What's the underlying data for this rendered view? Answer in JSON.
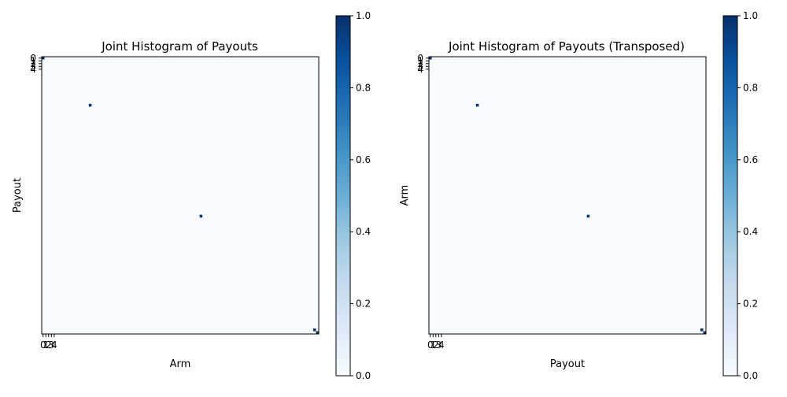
{
  "chart_data": [
    {
      "type": "heatmap",
      "title": "Joint Histogram of Payouts",
      "xlabel": "Arm",
      "ylabel": "Payout",
      "xticks": [
        "0",
        "1",
        "2",
        "3",
        "4"
      ],
      "yticks": [
        "0",
        "1",
        "2",
        "3",
        "4"
      ],
      "grid_size": 100,
      "cells": [
        {
          "x": 0,
          "y": 0,
          "value": 1
        },
        {
          "x": 17,
          "y": 17,
          "value": 1
        },
        {
          "x": 57,
          "y": 57,
          "value": 1
        },
        {
          "x": 98,
          "y": 98,
          "value": 1
        },
        {
          "x": 99,
          "y": 99,
          "value": 1
        }
      ],
      "colorbar": {
        "min": 0,
        "max": 1,
        "ticks": [
          "0.0",
          "0.2",
          "0.4",
          "0.6",
          "0.8",
          "1.0"
        ]
      },
      "colors": {
        "low": "#f7fbff",
        "high": "#08306b"
      }
    },
    {
      "type": "heatmap",
      "title": "Joint Histogram of Payouts (Transposed)",
      "xlabel": "Payout",
      "ylabel": "Arm",
      "xticks": [
        "0",
        "1",
        "2",
        "3",
        "4"
      ],
      "yticks": [
        "0",
        "1",
        "2",
        "3",
        "4"
      ],
      "grid_size": 100,
      "cells": [
        {
          "x": 0,
          "y": 0,
          "value": 1
        },
        {
          "x": 17,
          "y": 17,
          "value": 1
        },
        {
          "x": 57,
          "y": 57,
          "value": 1
        },
        {
          "x": 98,
          "y": 98,
          "value": 1
        },
        {
          "x": 99,
          "y": 99,
          "value": 1
        }
      ],
      "colorbar": {
        "min": 0,
        "max": 1,
        "ticks": [
          "0.0",
          "0.2",
          "0.4",
          "0.6",
          "0.8",
          "1.0"
        ]
      },
      "colors": {
        "low": "#f7fbff",
        "high": "#08306b"
      }
    }
  ]
}
